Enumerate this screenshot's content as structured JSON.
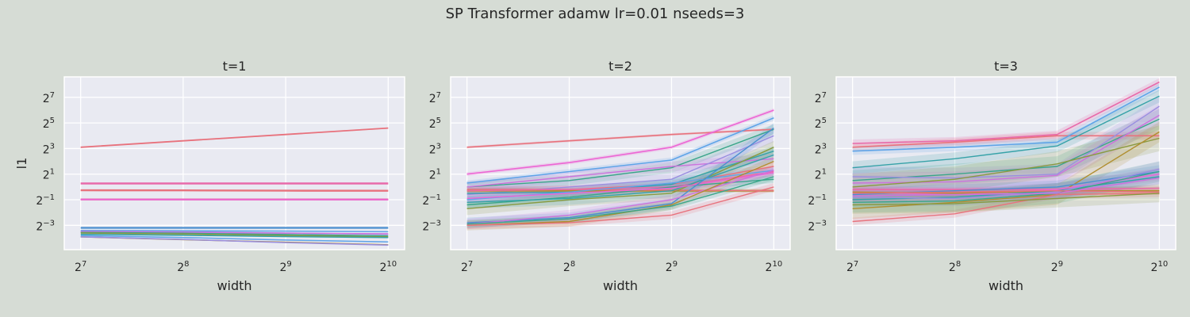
{
  "figure": {
    "suptitle": "SP Transformer adamw lr=0.01 nseeds=3",
    "background": "#d6dcd5",
    "axes_background": "#e9eaf2",
    "grid_color": "#ffffff"
  },
  "chart_data": [
    {
      "type": "line",
      "title": "t=1",
      "xlabel": "width",
      "ylabel": "l1",
      "xscale": "log2",
      "yscale": "log2",
      "x": [
        128,
        256,
        512,
        1024
      ],
      "xticks": [
        {
          "base": "2",
          "exp": "7"
        },
        {
          "base": "2",
          "exp": "8"
        },
        {
          "base": "2",
          "exp": "9"
        },
        {
          "base": "2",
          "exp": "10"
        }
      ],
      "yticks": [
        {
          "base": "2",
          "exp": "7"
        },
        {
          "base": "2",
          "exp": "5"
        },
        {
          "base": "2",
          "exp": "3"
        },
        {
          "base": "2",
          "exp": "1"
        },
        {
          "base": "2",
          "exp": "−1"
        },
        {
          "base": "2",
          "exp": "−3"
        }
      ],
      "xlim_log2": [
        6.84,
        10.16
      ],
      "ylim_log2": [
        -4.9,
        8.6
      ],
      "grid": true,
      "series": [
        {
          "color": "#e8727d",
          "log2_values": [
            3.1,
            3.6,
            4.1,
            4.6
          ],
          "band": 0.05,
          "width": 1.8
        },
        {
          "color": "#e8727d",
          "log2_values": [
            -0.26,
            -0.27,
            -0.29,
            -0.3
          ],
          "band": 0.04,
          "width": 2.4
        },
        {
          "color": "#e86aaa",
          "log2_values": [
            0.27,
            0.27,
            0.27,
            0.27
          ],
          "band": 0.03,
          "width": 2.4
        },
        {
          "color": "#e86aaa",
          "log2_values": [
            -0.98,
            -0.98,
            -0.98,
            -0.98
          ],
          "band": 0.03,
          "width": 2.4
        },
        {
          "color": "#ec66d4",
          "log2_values": [
            -0.98,
            -0.99,
            -0.99,
            -1.0
          ],
          "band": 0.03,
          "width": 1.5
        },
        {
          "color": "#4a8fd0",
          "log2_values": [
            -3.2,
            -3.2,
            -3.2,
            -3.2
          ],
          "band": 0.03,
          "width": 2.2
        },
        {
          "color": "#5fa4e8",
          "log2_values": [
            -3.4,
            -3.42,
            -3.45,
            -3.5
          ],
          "band": 0.04,
          "width": 1.5
        },
        {
          "color": "#9a8fe0",
          "log2_values": [
            -3.45,
            -3.5,
            -3.6,
            -3.7
          ],
          "band": 0.05,
          "width": 1.5
        },
        {
          "color": "#cc73dd",
          "log2_values": [
            -3.5,
            -3.55,
            -3.62,
            -3.66
          ],
          "band": 0.05,
          "width": 1.5
        },
        {
          "color": "#3aa58a",
          "log2_values": [
            -3.55,
            -3.62,
            -3.72,
            -3.82
          ],
          "band": 0.05,
          "width": 1.5
        },
        {
          "color": "#8a9a40",
          "log2_values": [
            -3.6,
            -3.68,
            -3.8,
            -3.9
          ],
          "band": 0.05,
          "width": 1.5
        },
        {
          "color": "#36a2a8",
          "log2_values": [
            -3.7,
            -3.78,
            -3.88,
            -3.96
          ],
          "band": 0.05,
          "width": 1.5
        },
        {
          "color": "#5fa4e8",
          "log2_values": [
            -3.8,
            -3.95,
            -4.15,
            -4.3
          ],
          "band": 0.05,
          "width": 1.5
        },
        {
          "color": "#b08e30",
          "log2_values": [
            -3.9,
            -4.12,
            -4.32,
            -4.52
          ],
          "band": 0.05,
          "width": 1.5
        },
        {
          "color": "#9a8fe0",
          "log2_values": [
            -3.9,
            -4.1,
            -4.35,
            -4.55
          ],
          "band": 0.05,
          "width": 1.5
        }
      ]
    },
    {
      "type": "line",
      "title": "t=2",
      "xlabel": "width",
      "ylabel": "",
      "xscale": "log2",
      "yscale": "log2",
      "x": [
        128,
        256,
        512,
        1024
      ],
      "xticks": [
        {
          "base": "2",
          "exp": "7"
        },
        {
          "base": "2",
          "exp": "8"
        },
        {
          "base": "2",
          "exp": "9"
        },
        {
          "base": "2",
          "exp": "10"
        }
      ],
      "yticks": [
        {
          "base": "2",
          "exp": "7"
        },
        {
          "base": "2",
          "exp": "5"
        },
        {
          "base": "2",
          "exp": "3"
        },
        {
          "base": "2",
          "exp": "1"
        },
        {
          "base": "2",
          "exp": "−1"
        },
        {
          "base": "2",
          "exp": "−3"
        }
      ],
      "xlim_log2": [
        6.84,
        10.16
      ],
      "ylim_log2": [
        -4.9,
        8.6
      ],
      "grid": true,
      "series": [
        {
          "color": "#e8727d",
          "log2_values": [
            3.1,
            3.6,
            4.1,
            4.5
          ],
          "band": 0.1,
          "width": 1.6
        },
        {
          "color": "#ec66d4",
          "log2_values": [
            1.0,
            1.9,
            3.1,
            6.0
          ],
          "band": 0.15,
          "width": 1.6
        },
        {
          "color": "#5fa4e8",
          "log2_values": [
            0.3,
            1.2,
            2.1,
            5.4
          ],
          "band": 0.2,
          "width": 1.6
        },
        {
          "color": "#3aa58a",
          "log2_values": [
            0.0,
            0.5,
            1.5,
            4.5
          ],
          "band": 0.4,
          "width": 1.4
        },
        {
          "color": "#cc73dd",
          "log2_values": [
            0.0,
            0.8,
            1.6,
            2.2
          ],
          "band": 0.4,
          "width": 1.4
        },
        {
          "color": "#e8727d",
          "log2_values": [
            -0.3,
            -0.2,
            0.2,
            1.6
          ],
          "band": 0.3,
          "width": 1.4
        },
        {
          "color": "#9a8fe0",
          "log2_values": [
            -0.6,
            0.0,
            0.6,
            4.0
          ],
          "band": 0.5,
          "width": 1.4
        },
        {
          "color": "#36a2a8",
          "log2_values": [
            -0.5,
            -0.4,
            0.2,
            2.8
          ],
          "band": 0.4,
          "width": 1.4
        },
        {
          "color": "#b08e30",
          "log2_values": [
            -0.3,
            -0.3,
            -0.3,
            -0.3
          ],
          "band": 0.15,
          "width": 2.0
        },
        {
          "color": "#e8727d",
          "log2_values": [
            -0.2,
            -0.2,
            -0.25,
            -0.3
          ],
          "band": 0.1,
          "width": 1.4
        },
        {
          "color": "#e86aaa",
          "log2_values": [
            -0.3,
            -0.2,
            0.0,
            1.2
          ],
          "band": 0.3,
          "width": 1.4
        },
        {
          "color": "#3aa58a",
          "log2_values": [
            -1.4,
            -0.8,
            0.0,
            0.6
          ],
          "band": 0.3,
          "width": 1.4
        },
        {
          "color": "#8a9a40",
          "log2_values": [
            -1.7,
            -1.0,
            -0.5,
            3.1
          ],
          "band": 0.5,
          "width": 1.4
        },
        {
          "color": "#36a2a8",
          "log2_values": [
            -1.2,
            -0.9,
            -0.3,
            2.5
          ],
          "band": 0.5,
          "width": 1.4
        },
        {
          "color": "#5fa4e8",
          "log2_values": [
            -1.0,
            -0.4,
            0.3,
            1.3
          ],
          "band": 0.3,
          "width": 1.4
        },
        {
          "color": "#ec66d4",
          "log2_values": [
            -0.9,
            -0.5,
            -0.1,
            1.1
          ],
          "band": 0.3,
          "width": 1.4
        },
        {
          "color": "#4a8fd0",
          "log2_values": [
            -2.8,
            -2.4,
            -1.3,
            4.6
          ],
          "band": 0.4,
          "width": 1.4
        },
        {
          "color": "#cc73dd",
          "log2_values": [
            -2.9,
            -2.2,
            -1.0,
            1.3
          ],
          "band": 0.4,
          "width": 1.4
        },
        {
          "color": "#b08e30",
          "log2_values": [
            -3.0,
            -2.7,
            -1.4,
            2.0
          ],
          "band": 0.4,
          "width": 1.4
        },
        {
          "color": "#e8727d",
          "log2_values": [
            -3.0,
            -2.8,
            -2.2,
            0.0
          ],
          "band": 0.3,
          "width": 1.4
        },
        {
          "color": "#3aa58a",
          "log2_values": [
            -2.9,
            -2.5,
            -1.5,
            0.8
          ],
          "band": 0.3,
          "width": 1.4
        }
      ]
    },
    {
      "type": "line",
      "title": "t=3",
      "xlabel": "width",
      "ylabel": "",
      "xscale": "log2",
      "yscale": "log2",
      "x": [
        128,
        256,
        512,
        1024
      ],
      "xticks": [
        {
          "base": "2",
          "exp": "7"
        },
        {
          "base": "2",
          "exp": "8"
        },
        {
          "base": "2",
          "exp": "9"
        },
        {
          "base": "2",
          "exp": "10"
        }
      ],
      "yticks": [
        {
          "base": "2",
          "exp": "7"
        },
        {
          "base": "2",
          "exp": "5"
        },
        {
          "base": "2",
          "exp": "3"
        },
        {
          "base": "2",
          "exp": "1"
        },
        {
          "base": "2",
          "exp": "−1"
        },
        {
          "base": "2",
          "exp": "−3"
        }
      ],
      "xlim_log2": [
        6.84,
        10.16
      ],
      "ylim_log2": [
        -4.9,
        8.6
      ],
      "grid": true,
      "series": [
        {
          "color": "#e86aaa",
          "log2_values": [
            3.4,
            3.6,
            4.1,
            8.2
          ],
          "band": 0.3,
          "width": 1.6
        },
        {
          "color": "#e8727d",
          "log2_values": [
            3.1,
            3.5,
            4.0,
            4.0
          ],
          "band": 0.3,
          "width": 1.6
        },
        {
          "color": "#5fa4e8",
          "log2_values": [
            2.8,
            3.1,
            3.5,
            7.8
          ],
          "band": 0.3,
          "width": 1.6
        },
        {
          "color": "#36a2a8",
          "log2_values": [
            1.5,
            2.2,
            3.2,
            7.1
          ],
          "band": 0.5,
          "width": 1.4
        },
        {
          "color": "#3aa58a",
          "log2_values": [
            0.5,
            1.0,
            1.6,
            5.3
          ],
          "band": 0.8,
          "width": 1.4
        },
        {
          "color": "#9a8fe0",
          "log2_values": [
            0.8,
            0.7,
            1.0,
            6.3
          ],
          "band": 0.8,
          "width": 1.4
        },
        {
          "color": "#cc73dd",
          "log2_values": [
            0.3,
            0.4,
            0.9,
            5.6
          ],
          "band": 0.8,
          "width": 1.4
        },
        {
          "color": "#8a9a40",
          "log2_values": [
            0.0,
            0.6,
            1.8,
            3.8
          ],
          "band": 1.0,
          "width": 1.4
        },
        {
          "color": "#b08e30",
          "log2_values": [
            -1.7,
            -1.2,
            -0.6,
            4.3
          ],
          "band": 0.8,
          "width": 1.4
        },
        {
          "color": "#e8727d",
          "log2_values": [
            -2.7,
            -2.1,
            -0.6,
            -0.5
          ],
          "band": 0.3,
          "width": 1.4
        },
        {
          "color": "#e86aaa",
          "log2_values": [
            -0.2,
            -0.2,
            -0.2,
            -0.1
          ],
          "band": 0.2,
          "width": 1.6
        },
        {
          "color": "#4a8fd0",
          "log2_values": [
            -0.6,
            -0.3,
            0.0,
            1.2
          ],
          "band": 0.5,
          "width": 1.4
        },
        {
          "color": "#ec66d4",
          "log2_values": [
            -0.4,
            -0.6,
            -0.2,
            1.0
          ],
          "band": 0.5,
          "width": 1.4
        },
        {
          "color": "#36a2a8",
          "log2_values": [
            -1.0,
            -0.8,
            -0.3,
            0.8
          ],
          "band": 0.6,
          "width": 1.4
        },
        {
          "color": "#b08e30",
          "log2_values": [
            -0.4,
            -0.5,
            -0.3,
            -0.3
          ],
          "band": 0.3,
          "width": 1.4
        },
        {
          "color": "#3aa58a",
          "log2_values": [
            -1.2,
            -1.1,
            -0.5,
            1.2
          ],
          "band": 0.8,
          "width": 1.4
        },
        {
          "color": "#9a8fe0",
          "log2_values": [
            -0.8,
            -0.9,
            -0.4,
            1.4
          ],
          "band": 0.6,
          "width": 1.4
        },
        {
          "color": "#8a9a40",
          "log2_values": [
            -1.4,
            -1.3,
            -0.9,
            -0.5
          ],
          "band": 0.7,
          "width": 1.4
        },
        {
          "color": "#e8727d",
          "log2_values": [
            -0.5,
            -0.4,
            -0.3,
            -0.4
          ],
          "band": 0.2,
          "width": 1.4
        },
        {
          "color": "#cc73dd",
          "log2_values": [
            -0.7,
            -0.6,
            -0.5,
            0.7
          ],
          "band": 0.5,
          "width": 1.4
        }
      ]
    }
  ]
}
